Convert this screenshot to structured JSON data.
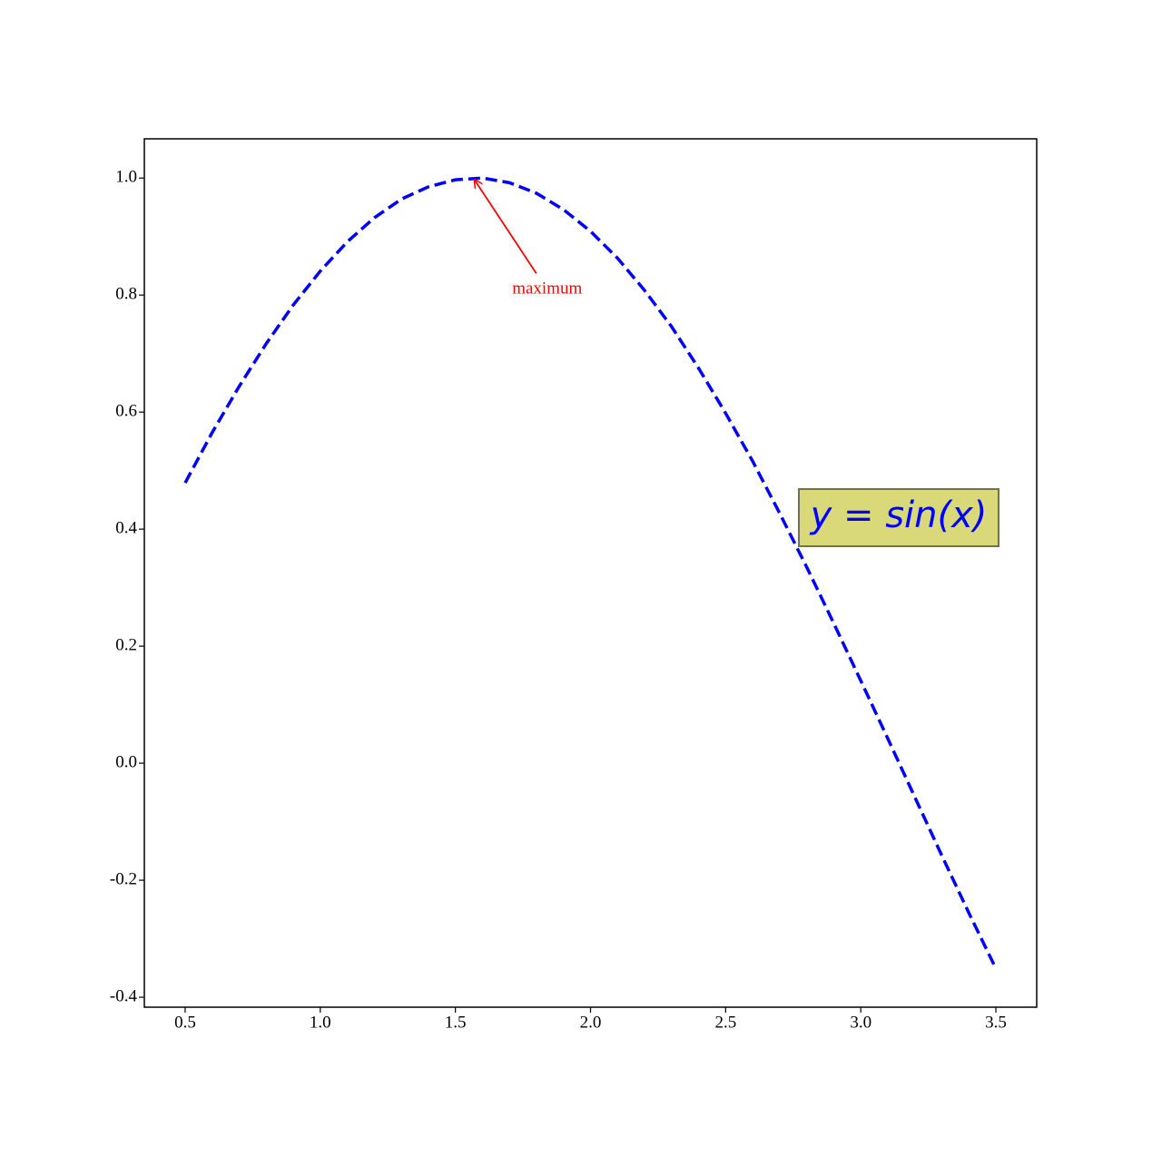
{
  "chart_data": {
    "type": "line",
    "x": [
      0.5,
      0.6,
      0.7,
      0.8,
      0.9,
      1.0,
      1.1,
      1.2,
      1.3,
      1.4,
      1.5,
      1.6,
      1.7,
      1.8,
      1.9,
      2.0,
      2.1,
      2.2,
      2.3,
      2.4,
      2.5,
      2.6,
      2.7,
      2.8,
      2.9,
      3.0,
      3.1,
      3.2,
      3.3,
      3.4,
      3.5
    ],
    "series": [
      {
        "color": "#0000ff",
        "values": [
          0.479,
          0.565,
          0.644,
          0.717,
          0.783,
          0.841,
          0.891,
          0.932,
          0.964,
          0.985,
          0.997,
          1.0,
          0.992,
          0.974,
          0.946,
          0.909,
          0.863,
          0.808,
          0.746,
          0.675,
          0.598,
          0.516,
          0.427,
          0.335,
          0.239,
          0.141,
          0.042,
          -0.058,
          -0.158,
          -0.256,
          -0.351
        ]
      }
    ],
    "xlim": [
      0.349,
      3.651
    ],
    "ylim": [
      -0.417,
      1.067
    ],
    "xticks": [
      {
        "value": 0.5,
        "label": "0.5"
      },
      {
        "value": 1,
        "label": "1.0"
      },
      {
        "value": 1.5,
        "label": "1.5"
      },
      {
        "value": 2,
        "label": "2.0"
      },
      {
        "value": 2.5,
        "label": "2.5"
      },
      {
        "value": 3,
        "label": "3.0"
      },
      {
        "value": 3.5,
        "label": "3.5"
      }
    ],
    "yticks": [
      {
        "value": -0.4,
        "label": "-0.4"
      },
      {
        "value": -0.2,
        "label": "-0.2"
      },
      {
        "value": 0,
        "label": "0.0"
      },
      0.2,
      0.4,
      0.6,
      0.8,
      {
        "value": 1,
        "label": "1.0"
      }
    ],
    "annotations": [
      {
        "text": "maximum",
        "color": "#ff0000",
        "xy": [
          1.5708,
          1.0
        ]
      }
    ],
    "text_box": {
      "text": "y = sin(x)",
      "color": "#0000ff"
    }
  }
}
